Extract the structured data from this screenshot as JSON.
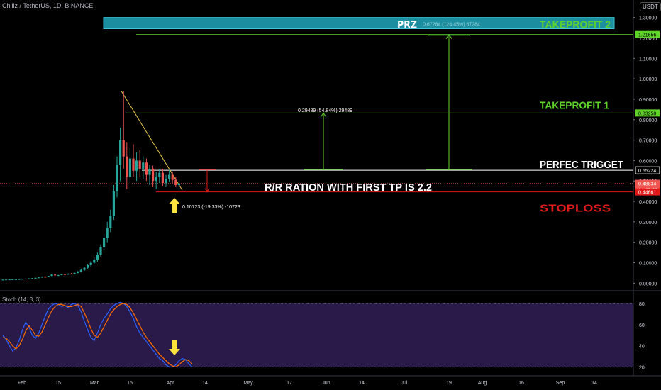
{
  "header": {
    "title": "Chiliz / TetherUS, 1D, BINANCE",
    "currency_badge": "USDT",
    "stoch_title": "Stoch (14, 3, 3)"
  },
  "colors": {
    "background": "#000000",
    "candle_up": "#26a69a",
    "candle_down": "#ef5350",
    "green_line": "#5fd32a",
    "red_line": "#e01a1a",
    "prz": "#1b8fa0",
    "stoch_bg": "#2a1a4a",
    "stoch_k": "#2962ff",
    "stoch_d": "#ff6d00",
    "arrow": "#ffe23b"
  },
  "chart_data": [
    {
      "type": "candlestick",
      "ylim": [
        -0.03,
        1.33
      ],
      "y_scale": "linear",
      "grid": false,
      "x_ticks": [
        "Feb",
        "15",
        "Mar",
        "15",
        "Apr",
        "14",
        "May",
        "17",
        "Jun",
        "14",
        "Jul",
        "19",
        "Aug",
        "16",
        "Sep",
        "14"
      ],
      "y_ticks": [
        "1.30000",
        "1.20000",
        "1.10000",
        "1.00000",
        "0.90000",
        "0.80000",
        "0.70000",
        "0.60000",
        "0.50000",
        "0.40000",
        "0.30000",
        "0.20000",
        "0.10000",
        "0.00000"
      ],
      "y_tick_values": [
        1.3,
        1.2,
        1.1,
        1.0,
        0.9,
        0.8,
        0.7,
        0.6,
        0.5,
        0.4,
        0.3,
        0.2,
        0.1,
        0.0
      ],
      "price_labels": [
        {
          "text": "1.21656",
          "value": 1.21656,
          "color": "#5fd32a"
        },
        {
          "text": "0.83258",
          "value": 0.83258,
          "color": "#5fd32a"
        },
        {
          "text": "0.55224",
          "value": 0.55224,
          "color": "#ffffff"
        },
        {
          "text": "0.48834",
          "value": 0.48834,
          "color": "#ef5350"
        },
        {
          "text": "14:37:23",
          "value": 0.46,
          "color": "#ef5350"
        },
        {
          "text": "0.44661",
          "value": 0.44661,
          "color": "#e01a1a"
        }
      ],
      "levels": {
        "takeprofit_2": 1.21656,
        "takeprofit_1": 0.83258,
        "trigger": 0.55224,
        "stoploss": 0.44661,
        "prz_low": 1.245,
        "prz_high": 1.3
      },
      "annotations": [
        {
          "text": "PRZ",
          "kind": "big",
          "color": "#ffffff"
        },
        {
          "text": "0.67284 (124.45%) 67284",
          "kind": "small",
          "color": "#9fd8e0"
        },
        {
          "text": "TAKEPROFIT 2",
          "kind": "label",
          "color": "#5fd32a"
        },
        {
          "text": "0.29489 (54.84%) 29489",
          "kind": "small",
          "color": "#ffffff"
        },
        {
          "text": "TAKEPROFIT 1",
          "kind": "label",
          "color": "#5fd32a"
        },
        {
          "text": "PERFEC TRIGGET",
          "kind": "label",
          "color": "#ffffff"
        },
        {
          "text": "R/R RATION WITH FIRST TP IS 2.2",
          "kind": "label",
          "color": "#ffffff"
        },
        {
          "text": "STOPLOSS",
          "kind": "label",
          "color": "#e01a1a"
        },
        {
          "text": "0.10723 (-19.33%) -10723",
          "kind": "small",
          "color": "#ffffff"
        }
      ],
      "candles": [
        [
          0.017,
          0.018,
          0.016,
          0.017
        ],
        [
          0.017,
          0.018,
          0.016,
          0.018
        ],
        [
          0.018,
          0.019,
          0.017,
          0.018
        ],
        [
          0.018,
          0.019,
          0.017,
          0.019
        ],
        [
          0.019,
          0.02,
          0.018,
          0.019
        ],
        [
          0.019,
          0.021,
          0.018,
          0.02
        ],
        [
          0.02,
          0.022,
          0.019,
          0.021
        ],
        [
          0.021,
          0.023,
          0.02,
          0.022
        ],
        [
          0.022,
          0.024,
          0.021,
          0.023
        ],
        [
          0.023,
          0.025,
          0.022,
          0.024
        ],
        [
          0.024,
          0.027,
          0.023,
          0.026
        ],
        [
          0.026,
          0.03,
          0.025,
          0.028
        ],
        [
          0.028,
          0.033,
          0.027,
          0.031
        ],
        [
          0.031,
          0.034,
          0.029,
          0.03
        ],
        [
          0.03,
          0.036,
          0.029,
          0.035
        ],
        [
          0.035,
          0.045,
          0.034,
          0.042
        ],
        [
          0.042,
          0.046,
          0.036,
          0.038
        ],
        [
          0.038,
          0.041,
          0.035,
          0.04
        ],
        [
          0.04,
          0.046,
          0.039,
          0.044
        ],
        [
          0.044,
          0.047,
          0.04,
          0.042
        ],
        [
          0.042,
          0.048,
          0.041,
          0.046
        ],
        [
          0.046,
          0.05,
          0.043,
          0.045
        ],
        [
          0.045,
          0.052,
          0.044,
          0.05
        ],
        [
          0.05,
          0.06,
          0.048,
          0.055
        ],
        [
          0.055,
          0.07,
          0.052,
          0.065
        ],
        [
          0.065,
          0.08,
          0.06,
          0.075
        ],
        [
          0.075,
          0.095,
          0.07,
          0.088
        ],
        [
          0.088,
          0.11,
          0.08,
          0.1
        ],
        [
          0.1,
          0.125,
          0.092,
          0.115
        ],
        [
          0.115,
          0.15,
          0.105,
          0.14
        ],
        [
          0.14,
          0.19,
          0.13,
          0.175
        ],
        [
          0.175,
          0.24,
          0.16,
          0.22
        ],
        [
          0.22,
          0.3,
          0.2,
          0.27
        ],
        [
          0.27,
          0.36,
          0.25,
          0.33
        ],
        [
          0.33,
          0.48,
          0.31,
          0.45
        ],
        [
          0.45,
          0.62,
          0.42,
          0.58
        ],
        [
          0.58,
          0.76,
          0.5,
          0.7
        ],
        [
          0.7,
          0.94,
          0.56,
          0.62
        ],
        [
          0.62,
          0.69,
          0.46,
          0.52
        ],
        [
          0.52,
          0.66,
          0.49,
          0.61
        ],
        [
          0.61,
          0.68,
          0.52,
          0.55
        ],
        [
          0.55,
          0.64,
          0.5,
          0.6
        ],
        [
          0.6,
          0.65,
          0.52,
          0.56
        ],
        [
          0.56,
          0.62,
          0.51,
          0.59
        ],
        [
          0.59,
          0.61,
          0.5,
          0.53
        ],
        [
          0.53,
          0.58,
          0.48,
          0.56
        ],
        [
          0.56,
          0.575,
          0.47,
          0.5
        ],
        [
          0.5,
          0.545,
          0.46,
          0.52
        ],
        [
          0.52,
          0.56,
          0.49,
          0.54
        ],
        [
          0.54,
          0.56,
          0.475,
          0.49
        ],
        [
          0.49,
          0.53,
          0.47,
          0.51
        ],
        [
          0.51,
          0.555,
          0.495,
          0.53
        ],
        [
          0.53,
          0.545,
          0.49,
          0.505
        ],
        [
          0.505,
          0.52,
          0.47,
          0.48
        ],
        [
          0.48,
          0.5,
          0.455,
          0.488
        ]
      ]
    },
    {
      "type": "line",
      "name": "Stoch (14, 3, 3)",
      "ylim": [
        15,
        90
      ],
      "y_ticks": [
        80,
        60,
        40,
        20
      ],
      "bands": [
        20,
        80
      ],
      "series": [
        {
          "values": [
            50,
            46,
            40,
            35,
            38,
            45,
            55,
            62,
            58,
            50,
            47,
            52,
            60,
            68,
            75,
            78,
            80,
            79,
            77,
            78,
            76,
            79,
            80,
            78,
            72,
            63,
            55,
            48,
            45,
            52,
            60,
            66,
            70,
            75,
            78,
            80,
            81,
            80,
            77,
            72,
            66,
            58,
            52,
            48,
            44,
            40,
            36,
            32,
            28,
            26,
            22,
            20,
            20,
            22,
            26,
            28,
            27,
            23,
            20
          ]
        },
        {
          "values": [
            48,
            47,
            44,
            40,
            37,
            40,
            46,
            54,
            59,
            55,
            50,
            49,
            53,
            60,
            67,
            73,
            77,
            79,
            79,
            78,
            77,
            77,
            78,
            79,
            77,
            71,
            64,
            56,
            50,
            48,
            52,
            58,
            64,
            70,
            74,
            77,
            79,
            80,
            79,
            76,
            71,
            65,
            59,
            53,
            48,
            44,
            40,
            36,
            32,
            29,
            26,
            23,
            21,
            20,
            22,
            25,
            27,
            26,
            23
          ]
        }
      ]
    }
  ]
}
